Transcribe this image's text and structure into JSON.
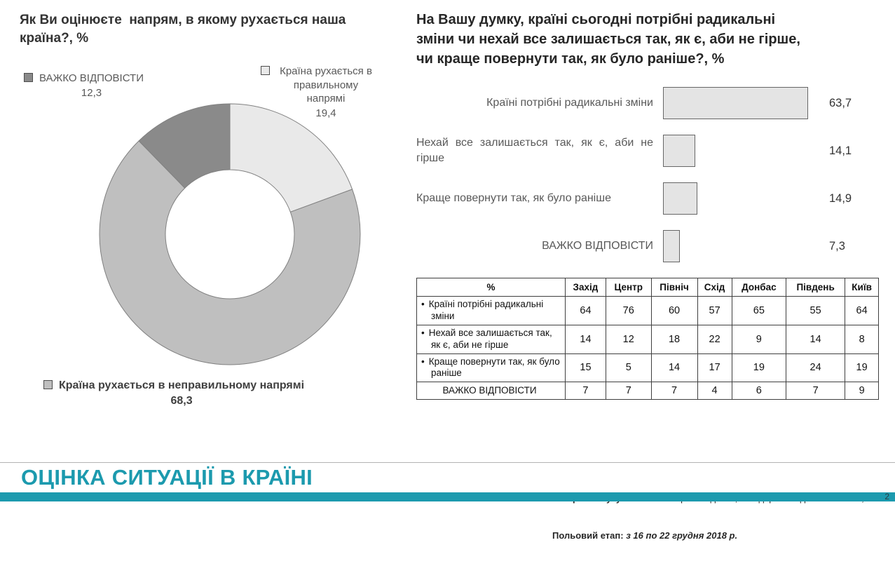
{
  "chart_data": [
    {
      "type": "pie",
      "donut": true,
      "title": "Як Ви оцінюєте  напрям, в якому рухається наша країна?, %",
      "legend_position": "around",
      "slices": [
        {
          "key": "pravylnyi-napriam",
          "label": "Країна рухається в правильному напрямі",
          "value": 19.4,
          "display": "19,4",
          "color": "#e9e9e9"
        },
        {
          "key": "nepravylnyi-napriam",
          "label": "Країна рухається в неправильному напрямі",
          "value": 68.3,
          "display": "68,3",
          "color": "#bfbfbf"
        },
        {
          "key": "vazhko-vidpovisty",
          "label": "ВАЖКО ВІДПОВІСТИ",
          "value": 12.3,
          "display": "12,3",
          "color": "#8a8a8a"
        }
      ]
    },
    {
      "type": "bar",
      "orientation": "horizontal",
      "title": "На Вашу думку, країні сьогодні потрібні радикальні зміни чи нехай все залишається так, як є, аби не гірше, чи краще повернути так, як було раніше?, %",
      "categories": [
        "Країні потрібні радикальні зміни",
        "Нехай все залишається так, як є, аби не гірше",
        "Краще повернути так, як було раніше",
        "ВАЖКО ВІДПОВІСТИ"
      ],
      "values": [
        63.7,
        14.1,
        14.9,
        7.3
      ],
      "display_values": [
        "63,7",
        "14,1",
        "14,9",
        "7,3"
      ],
      "xlim": [
        0,
        70
      ],
      "bar_color": "#e4e4e4",
      "bar_border": "#666666",
      "grid": false
    },
    {
      "type": "table",
      "columns": [
        "%",
        "Захід",
        "Центр",
        "Північ",
        "Схід",
        "Донбас",
        "Південь",
        "Київ"
      ],
      "rows": [
        {
          "bullet": true,
          "label": "Країні потрібні радикальні зміни",
          "values": [
            64,
            76,
            60,
            57,
            65,
            55,
            64
          ]
        },
        {
          "bullet": true,
          "label": "Нехай все залишається так, як є, аби не гірше",
          "values": [
            14,
            12,
            18,
            22,
            9,
            14,
            8
          ]
        },
        {
          "bullet": true,
          "label": "Краще повернути так, як було раніше",
          "values": [
            15,
            5,
            14,
            17,
            19,
            24,
            19
          ]
        },
        {
          "bullet": false,
          "label": "ВАЖКО  ВІДПОВІСТИ",
          "values": [
            7,
            7,
            7,
            4,
            6,
            7,
            9
          ]
        }
      ]
    }
  ],
  "footer": {
    "title": "ОЦІНКА СИТУАЦІЇ В КРАЇНІ",
    "note1_bold": "Вибіркова сукупність:  2045",
    "note1_rest": " респондента; стандартне  відхилення +/- 2,2%",
    "note2_bold": "Польовий етап:",
    "note2_rest": " з 16 по 22 грудня 2018 р.",
    "page": "2",
    "accent_color": "#1c9aae"
  }
}
